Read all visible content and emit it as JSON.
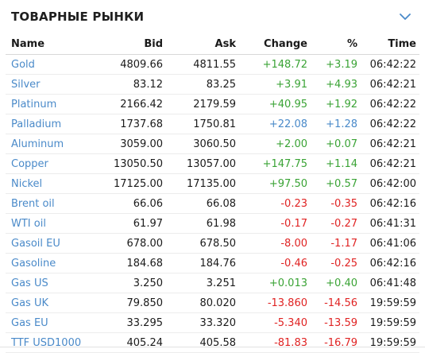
{
  "widget": {
    "title": "ТОВАРНЫЕ РЫНКИ",
    "toggle_icon": "chevron-down-icon"
  },
  "colors": {
    "link": "#4a8ac9",
    "positive": "#3aa335",
    "negative": "#e02323",
    "neutral_change": "#4a8ac9"
  },
  "table": {
    "headers": {
      "name": "Name",
      "bid": "Bid",
      "ask": "Ask",
      "change": "Change",
      "percent": "%",
      "time": "Time"
    },
    "rows": [
      {
        "name": "Gold",
        "bid": "4809.66",
        "ask": "4811.55",
        "change": "+148.72",
        "percent": "+3.19",
        "time": "06:42:22",
        "dir": "pos"
      },
      {
        "name": "Silver",
        "bid": "83.12",
        "ask": "83.25",
        "change": "+3.91",
        "percent": "+4.93",
        "time": "06:42:21",
        "dir": "pos"
      },
      {
        "name": "Platinum",
        "bid": "2166.42",
        "ask": "2179.59",
        "change": "+40.95",
        "percent": "+1.92",
        "time": "06:42:22",
        "dir": "pos"
      },
      {
        "name": "Palladium",
        "bid": "1737.68",
        "ask": "1750.81",
        "change": "+22.08",
        "percent": "+1.28",
        "time": "06:42:22",
        "dir": "blu"
      },
      {
        "name": "Aluminum",
        "bid": "3059.00",
        "ask": "3060.50",
        "change": "+2.00",
        "percent": "+0.07",
        "time": "06:42:21",
        "dir": "pos"
      },
      {
        "name": "Copper",
        "bid": "13050.50",
        "ask": "13057.00",
        "change": "+147.75",
        "percent": "+1.14",
        "time": "06:42:21",
        "dir": "pos"
      },
      {
        "name": "Nickel",
        "bid": "17125.00",
        "ask": "17135.00",
        "change": "+97.50",
        "percent": "+0.57",
        "time": "06:42:00",
        "dir": "pos"
      },
      {
        "name": "Brent oil",
        "bid": "66.06",
        "ask": "66.08",
        "change": "-0.23",
        "percent": "-0.35",
        "time": "06:42:16",
        "dir": "neg"
      },
      {
        "name": "WTI oil",
        "bid": "61.97",
        "ask": "61.98",
        "change": "-0.17",
        "percent": "-0.27",
        "time": "06:41:31",
        "dir": "neg"
      },
      {
        "name": "Gasoil EU",
        "bid": "678.00",
        "ask": "678.50",
        "change": "-8.00",
        "percent": "-1.17",
        "time": "06:41:06",
        "dir": "neg"
      },
      {
        "name": "Gasoline",
        "bid": "184.68",
        "ask": "184.76",
        "change": "-0.46",
        "percent": "-0.25",
        "time": "06:42:16",
        "dir": "neg"
      },
      {
        "name": "Gas US",
        "bid": "3.250",
        "ask": "3.251",
        "change": "+0.013",
        "percent": "+0.40",
        "time": "06:41:48",
        "dir": "pos"
      },
      {
        "name": "Gas UK",
        "bid": "79.850",
        "ask": "80.020",
        "change": "-13.860",
        "percent": "-14.56",
        "time": "19:59:59",
        "dir": "neg"
      },
      {
        "name": "Gas EU",
        "bid": "33.295",
        "ask": "33.320",
        "change": "-5.340",
        "percent": "-13.59",
        "time": "19:59:59",
        "dir": "neg"
      },
      {
        "name": "TTF USD1000",
        "bid": "405.24",
        "ask": "405.58",
        "change": "-81.83",
        "percent": "-16.79",
        "time": "19:59:59",
        "dir": "neg"
      }
    ]
  }
}
